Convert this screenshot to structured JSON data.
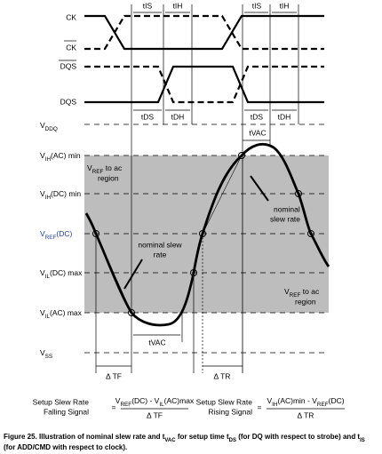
{
  "signals": {
    "ck": "CK",
    "ck_bar": "CK",
    "dqs_bar": "DQS",
    "dqs": "DQS"
  },
  "timing": {
    "tis_1": "tIS",
    "tih_1": "tIH",
    "tis_2": "tIS",
    "tih_2": "tIH",
    "tds_1": "tDS",
    "tdh_1": "tDH",
    "tds_2": "tDS",
    "tdh_2": "tDH"
  },
  "levels": {
    "vddq": [
      "V",
      "DDQ"
    ],
    "vih_ac": [
      "V",
      "IH",
      "(AC) min"
    ],
    "vih_dc": [
      "V",
      "IH",
      "(DC) min"
    ],
    "vref_dc": [
      "V",
      "REF",
      "(DC)"
    ],
    "vil_dc": [
      "V",
      "IL",
      "(DC) max"
    ],
    "vil_ac": [
      "V",
      "IL",
      "(AC) max"
    ],
    "vss": [
      "V",
      "SS"
    ]
  },
  "annotations": {
    "vref_ac_top_1": [
      "V",
      "REF",
      " to ac"
    ],
    "vref_ac_top_2": "region",
    "slew_left_1": "nominal slew",
    "slew_left_2": "rate",
    "slew_right_1": "nominal",
    "slew_right_2": "slew rate",
    "vref_ac_bottom_1": [
      "V",
      "REF",
      " to ac"
    ],
    "vref_ac_bottom_2": "region",
    "tvac_top": "tVAC",
    "tvac_bottom": "tVAC",
    "delta_tf": "Δ TF",
    "delta_tr": "Δ TR"
  },
  "formulas": {
    "falling": {
      "label_1": "Setup Slew Rate",
      "label_2": "Falling Signal",
      "eq": "=",
      "numerator": [
        "V",
        "REF",
        "(DC) - V",
        "IL",
        "(AC)max"
      ],
      "denominator": "Δ TF"
    },
    "rising": {
      "label_1": "Setup Slew Rate",
      "label_2": "Rising Signal",
      "eq": "=",
      "numerator": [
        "V",
        "IH",
        "(AC)min - V",
        "REF",
        "(DC)"
      ],
      "denominator": "Δ TR"
    }
  },
  "caption": {
    "line_1": [
      "Figure 25. Illustration of nominal slew rate and t",
      "VAC",
      " for setup time t",
      "DS",
      " (for DQ with respect to strobe) and t",
      "IS"
    ],
    "line_2": "(for ADD/CMD with respect to clock)."
  }
}
